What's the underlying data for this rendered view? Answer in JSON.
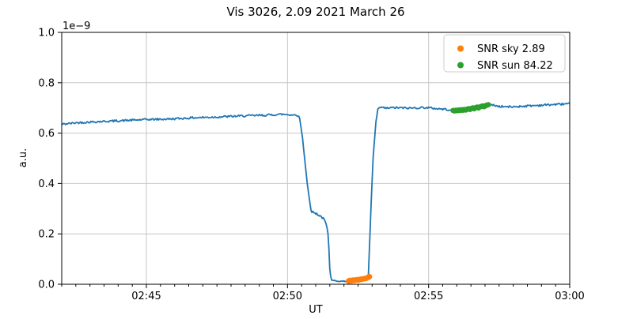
{
  "figure": {
    "background": "#ffffff"
  },
  "chart_data": {
    "type": "line",
    "title": "Vis 3026, 2.09 2021 March 26",
    "xlabel": "UT",
    "ylabel": "a.u.",
    "y_offset_label": "1e−9",
    "x_start": "02:42:00",
    "x_end": "03:00:00",
    "x_ticks": [
      "02:45",
      "02:50",
      "02:55",
      "03:00"
    ],
    "x_minor_tick_interval_s": 30,
    "ylim": [
      0.0,
      1.0
    ],
    "y_ticks": [
      0.0,
      0.2,
      0.4,
      0.6,
      0.8,
      1.0
    ],
    "grid": true,
    "legend": {
      "position": "upper right",
      "entries": [
        {
          "label": "SNR sky 2.89",
          "color": "#ff7f0e"
        },
        {
          "label": "SNR sun 84.22",
          "color": "#2ca02c"
        }
      ]
    },
    "series": [
      {
        "name": "signal",
        "type": "line",
        "color": "#1f77b4",
        "units": "1e-9 a.u.",
        "noise_amplitude": 0.004,
        "anchors": [
          [
            0,
            0.635
          ],
          [
            30,
            0.641
          ],
          [
            70,
            0.645
          ],
          [
            120,
            0.649
          ],
          [
            180,
            0.654
          ],
          [
            230,
            0.656
          ],
          [
            280,
            0.661
          ],
          [
            330,
            0.664
          ],
          [
            380,
            0.668
          ],
          [
            430,
            0.671
          ],
          [
            470,
            0.675
          ],
          [
            495,
            0.672
          ],
          [
            505,
            0.67
          ],
          [
            512,
            0.58
          ],
          [
            522,
            0.4
          ],
          [
            530,
            0.29
          ],
          [
            542,
            0.28
          ],
          [
            552,
            0.268
          ],
          [
            559,
            0.255
          ],
          [
            563,
            0.235
          ],
          [
            567,
            0.19
          ],
          [
            570,
            0.06
          ],
          [
            573,
            0.016
          ],
          [
            590,
            0.012
          ],
          [
            610,
            0.012
          ],
          [
            630,
            0.013
          ],
          [
            648,
            0.016
          ],
          [
            652,
            0.04
          ],
          [
            657,
            0.28
          ],
          [
            662,
            0.5
          ],
          [
            668,
            0.645
          ],
          [
            672,
            0.692
          ],
          [
            678,
            0.703
          ],
          [
            688,
            0.699
          ],
          [
            710,
            0.701
          ],
          [
            740,
            0.699
          ],
          [
            770,
            0.702
          ],
          [
            800,
            0.697
          ],
          [
            830,
            0.692
          ],
          [
            855,
            0.695
          ],
          [
            880,
            0.701
          ],
          [
            905,
            0.709
          ],
          [
            915,
            0.712
          ],
          [
            930,
            0.706
          ],
          [
            955,
            0.704
          ],
          [
            980,
            0.707
          ],
          [
            1010,
            0.71
          ],
          [
            1040,
            0.713
          ],
          [
            1080,
            0.717
          ]
        ]
      },
      {
        "name": "SNR sky 2.89",
        "type": "scatter",
        "color": "#ff7f0e",
        "marker_radius": 3.6,
        "points": [
          [
            610,
            0.013
          ],
          [
            613,
            0.015
          ],
          [
            616,
            0.014
          ],
          [
            619,
            0.016
          ],
          [
            622,
            0.015
          ],
          [
            625,
            0.017
          ],
          [
            628,
            0.018
          ],
          [
            631,
            0.017
          ],
          [
            634,
            0.019
          ],
          [
            637,
            0.02
          ],
          [
            640,
            0.021
          ],
          [
            643,
            0.022
          ],
          [
            646,
            0.023
          ],
          [
            649,
            0.025
          ],
          [
            652,
            0.028
          ],
          [
            654,
            0.03
          ]
        ]
      },
      {
        "name": "SNR sun 84.22",
        "type": "scatter",
        "color": "#2ca02c",
        "marker_radius": 3.4,
        "points": [
          [
            832,
            0.69
          ],
          [
            835,
            0.688
          ],
          [
            838,
            0.691
          ],
          [
            841,
            0.689
          ],
          [
            844,
            0.692
          ],
          [
            847,
            0.69
          ],
          [
            850,
            0.693
          ],
          [
            853,
            0.691
          ],
          [
            856,
            0.694
          ],
          [
            859,
            0.692
          ],
          [
            862,
            0.695
          ],
          [
            865,
            0.697
          ],
          [
            868,
            0.694
          ],
          [
            871,
            0.698
          ],
          [
            874,
            0.7
          ],
          [
            877,
            0.697
          ],
          [
            880,
            0.701
          ],
          [
            883,
            0.703
          ],
          [
            886,
            0.7
          ],
          [
            889,
            0.704
          ],
          [
            892,
            0.706
          ],
          [
            895,
            0.708
          ],
          [
            898,
            0.705
          ],
          [
            901,
            0.709
          ],
          [
            904,
            0.711
          ],
          [
            907,
            0.713
          ]
        ]
      }
    ],
    "colors": {
      "line": "#1f77b4",
      "sky_scatter": "#ff7f0e",
      "sun_scatter": "#2ca02c",
      "grid": "#c6c6c6",
      "spine": "#000000",
      "legend_border": "#cccccc"
    }
  }
}
